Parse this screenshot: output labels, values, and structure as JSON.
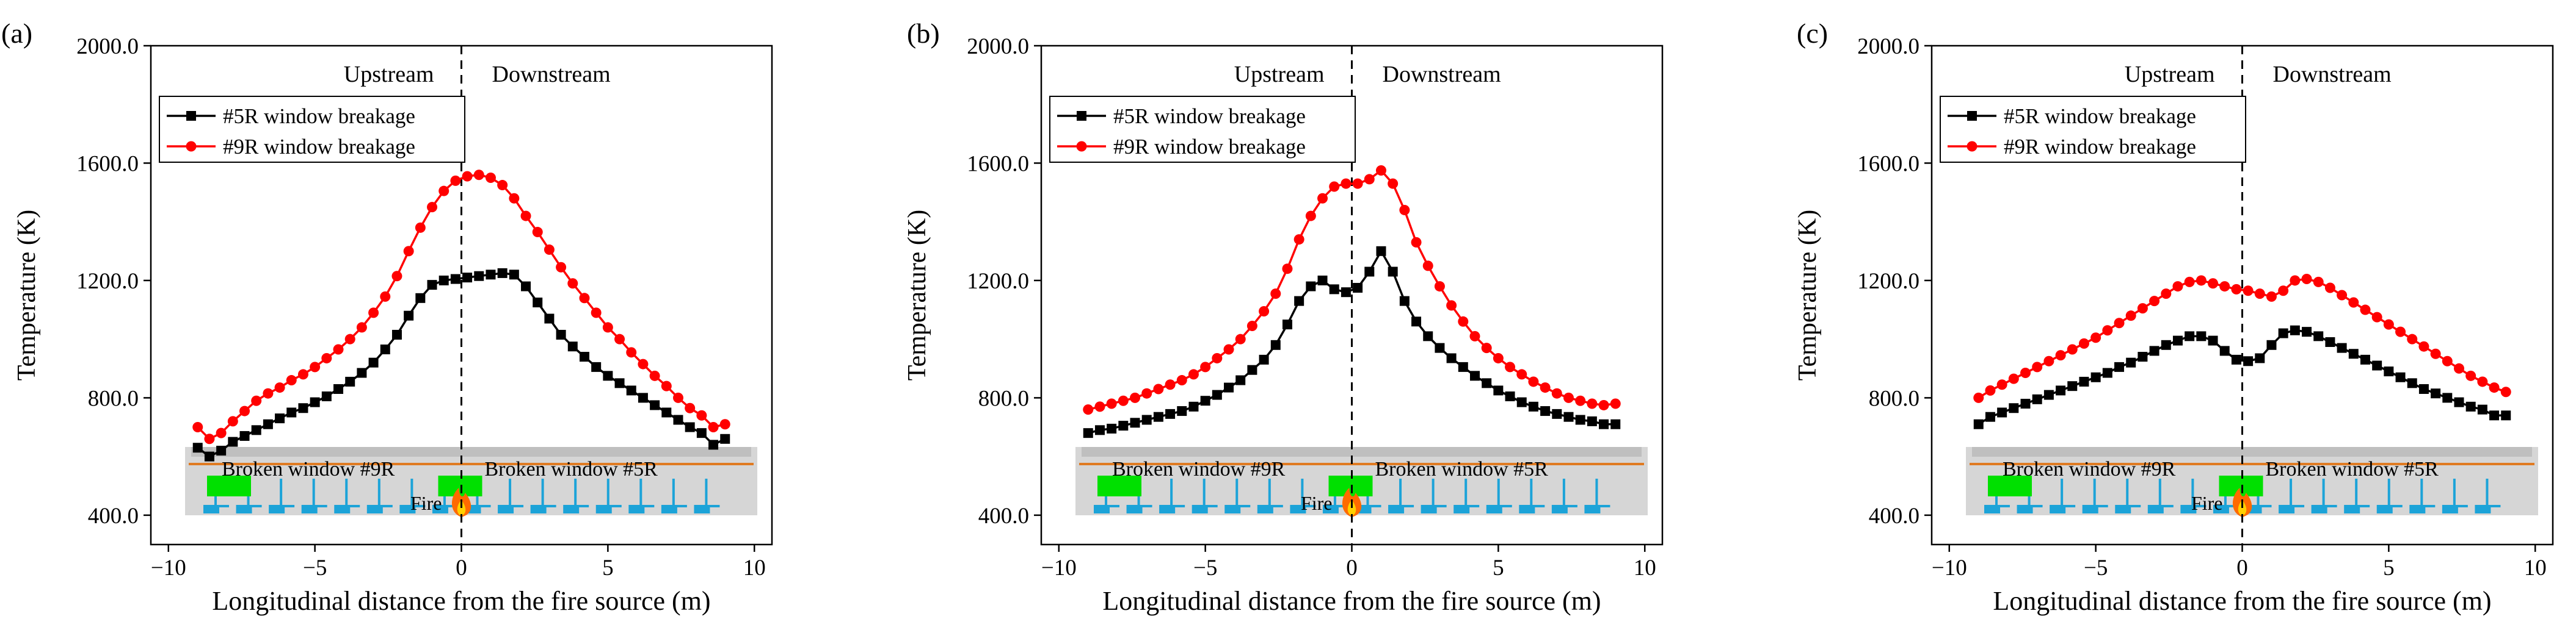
{
  "colors": {
    "series5R": "#000000",
    "series9R": "#ff0000",
    "tunnelGray": "#d6d6d6",
    "tunnelTop": "#bfbfbf",
    "orangeLine": "#e07b22",
    "window": "#00e000",
    "platform": "#1ca3d8",
    "fire": "#ff6a00"
  },
  "chart_data": [
    {
      "panel_label": "(a)",
      "type": "line",
      "xlabel": "Longitudinal distance from the fire source (m)",
      "ylabel": "Temperature (K)",
      "xlim": [
        -10.6,
        10.6
      ],
      "ylim": [
        300,
        2000
      ],
      "xticks": [
        -10,
        -5,
        0,
        5,
        10
      ],
      "xtick_labels": [
        "−10",
        "−5",
        "0",
        "5",
        "10"
      ],
      "yticks": [
        400,
        800,
        1200,
        1600,
        2000
      ],
      "ytick_labels": [
        "400.0",
        "800.0",
        "1200.0",
        "1600.0",
        "2000.0"
      ],
      "region_labels": {
        "upstream": "Upstream",
        "downstream": "Downstream"
      },
      "legend": {
        "position": "top-left",
        "entries": [
          "#5R window breakage",
          "#9R window breakage"
        ]
      },
      "schematic": {
        "label_left": "Broken window #9R",
        "label_right": "Broken window #5R",
        "fire_label": "Fire"
      },
      "x": [
        -9.0,
        -8.6,
        -8.2,
        -7.8,
        -7.4,
        -7.0,
        -6.6,
        -6.2,
        -5.8,
        -5.4,
        -5.0,
        -4.6,
        -4.2,
        -3.8,
        -3.4,
        -3.0,
        -2.6,
        -2.2,
        -1.8,
        -1.4,
        -1.0,
        -0.6,
        -0.2,
        0.2,
        0.6,
        1.0,
        1.4,
        1.8,
        2.2,
        2.6,
        3.0,
        3.4,
        3.8,
        4.2,
        4.6,
        5.0,
        5.4,
        5.8,
        6.2,
        6.6,
        7.0,
        7.4,
        7.8,
        8.2,
        8.6,
        9.0
      ],
      "series": [
        {
          "name": "#5R window breakage",
          "values": [
            630,
            600,
            620,
            650,
            670,
            690,
            710,
            730,
            750,
            765,
            785,
            805,
            830,
            855,
            885,
            920,
            965,
            1015,
            1080,
            1140,
            1185,
            1200,
            1205,
            1210,
            1215,
            1220,
            1225,
            1220,
            1180,
            1125,
            1070,
            1015,
            975,
            940,
            905,
            875,
            850,
            825,
            800,
            775,
            750,
            725,
            700,
            680,
            640,
            660
          ]
        },
        {
          "name": "#9R window breakage",
          "values": [
            700,
            660,
            680,
            720,
            755,
            790,
            815,
            835,
            860,
            880,
            905,
            935,
            965,
            1000,
            1040,
            1090,
            1145,
            1215,
            1300,
            1380,
            1450,
            1505,
            1540,
            1555,
            1560,
            1550,
            1525,
            1480,
            1420,
            1365,
            1305,
            1245,
            1190,
            1140,
            1090,
            1040,
            1000,
            955,
            915,
            875,
            840,
            800,
            765,
            740,
            700,
            710
          ]
        }
      ]
    },
    {
      "panel_label": "(b)",
      "type": "line",
      "xlabel": "Longitudinal distance from the fire source (m)",
      "ylabel": "Temperature (K)",
      "xlim": [
        -10.6,
        10.6
      ],
      "ylim": [
        300,
        2000
      ],
      "xticks": [
        -10,
        -5,
        0,
        5,
        10
      ],
      "xtick_labels": [
        "−10",
        "−5",
        "0",
        "5",
        "10"
      ],
      "yticks": [
        400,
        800,
        1200,
        1600,
        2000
      ],
      "ytick_labels": [
        "400.0",
        "800.0",
        "1200.0",
        "1600.0",
        "2000.0"
      ],
      "region_labels": {
        "upstream": "Upstream",
        "downstream": "Downstream"
      },
      "legend": {
        "position": "top-left",
        "entries": [
          "#5R window breakage",
          "#9R window breakage"
        ]
      },
      "schematic": {
        "label_left": "Broken window #9R",
        "label_right": "Broken window #5R",
        "fire_label": "Fire"
      },
      "x": [
        -9.0,
        -8.6,
        -8.2,
        -7.8,
        -7.4,
        -7.0,
        -6.6,
        -6.2,
        -5.8,
        -5.4,
        -5.0,
        -4.6,
        -4.2,
        -3.8,
        -3.4,
        -3.0,
        -2.6,
        -2.2,
        -1.8,
        -1.4,
        -1.0,
        -0.6,
        -0.2,
        0.2,
        0.6,
        1.0,
        1.4,
        1.8,
        2.2,
        2.6,
        3.0,
        3.4,
        3.8,
        4.2,
        4.6,
        5.0,
        5.4,
        5.8,
        6.2,
        6.6,
        7.0,
        7.4,
        7.8,
        8.2,
        8.6,
        9.0
      ],
      "series": [
        {
          "name": "#5R window breakage",
          "values": [
            680,
            690,
            695,
            705,
            715,
            725,
            735,
            745,
            755,
            770,
            790,
            810,
            835,
            860,
            895,
            930,
            980,
            1050,
            1130,
            1180,
            1200,
            1170,
            1160,
            1175,
            1230,
            1300,
            1230,
            1130,
            1060,
            1010,
            970,
            935,
            905,
            875,
            850,
            825,
            805,
            785,
            770,
            755,
            745,
            735,
            725,
            720,
            710,
            710
          ]
        },
        {
          "name": "#9R window breakage",
          "values": [
            760,
            770,
            780,
            790,
            800,
            815,
            830,
            845,
            860,
            880,
            905,
            935,
            965,
            1000,
            1045,
            1095,
            1155,
            1240,
            1340,
            1420,
            1480,
            1520,
            1530,
            1530,
            1545,
            1575,
            1530,
            1440,
            1330,
            1250,
            1180,
            1115,
            1060,
            1010,
            970,
            935,
            905,
            880,
            855,
            835,
            815,
            800,
            790,
            780,
            775,
            780
          ]
        }
      ]
    },
    {
      "panel_label": "(c)",
      "type": "line",
      "xlabel": "Longitudinal distance from the fire source (m)",
      "ylabel": "Temperature (K)",
      "xlim": [
        -10.6,
        10.6
      ],
      "ylim": [
        300,
        2000
      ],
      "xticks": [
        -10,
        -5,
        0,
        5,
        10
      ],
      "xtick_labels": [
        "−10",
        "−5",
        "0",
        "5",
        "10"
      ],
      "yticks": [
        400,
        800,
        1200,
        1600,
        2000
      ],
      "ytick_labels": [
        "400.0",
        "800.0",
        "1200.0",
        "1600.0",
        "2000.0"
      ],
      "region_labels": {
        "upstream": "Upstream",
        "downstream": "Downstream"
      },
      "legend": {
        "position": "top-left",
        "entries": [
          "#5R window breakage",
          "#9R window breakage"
        ]
      },
      "schematic": {
        "label_left": "Broken window #9R",
        "label_right": "Broken window #5R",
        "fire_label": "Fire"
      },
      "x": [
        -9.0,
        -8.6,
        -8.2,
        -7.8,
        -7.4,
        -7.0,
        -6.6,
        -6.2,
        -5.8,
        -5.4,
        -5.0,
        -4.6,
        -4.2,
        -3.8,
        -3.4,
        -3.0,
        -2.6,
        -2.2,
        -1.8,
        -1.4,
        -1.0,
        -0.6,
        -0.2,
        0.2,
        0.6,
        1.0,
        1.4,
        1.8,
        2.2,
        2.6,
        3.0,
        3.4,
        3.8,
        4.2,
        4.6,
        5.0,
        5.4,
        5.8,
        6.2,
        6.6,
        7.0,
        7.4,
        7.8,
        8.2,
        8.6,
        9.0
      ],
      "series": [
        {
          "name": "#5R window breakage",
          "values": [
            710,
            735,
            750,
            765,
            780,
            795,
            810,
            825,
            840,
            855,
            870,
            885,
            905,
            920,
            940,
            960,
            980,
            995,
            1010,
            1010,
            995,
            960,
            930,
            925,
            935,
            980,
            1020,
            1030,
            1025,
            1010,
            990,
            970,
            950,
            930,
            910,
            890,
            870,
            850,
            830,
            815,
            800,
            785,
            770,
            760,
            740,
            740
          ]
        },
        {
          "name": "#9R window breakage",
          "values": [
            800,
            825,
            845,
            865,
            885,
            905,
            925,
            945,
            965,
            985,
            1005,
            1030,
            1055,
            1080,
            1105,
            1130,
            1155,
            1180,
            1195,
            1200,
            1190,
            1180,
            1170,
            1165,
            1155,
            1145,
            1165,
            1200,
            1205,
            1195,
            1175,
            1150,
            1125,
            1100,
            1075,
            1050,
            1025,
            1000,
            975,
            950,
            925,
            900,
            875,
            855,
            835,
            820
          ]
        }
      ]
    }
  ]
}
